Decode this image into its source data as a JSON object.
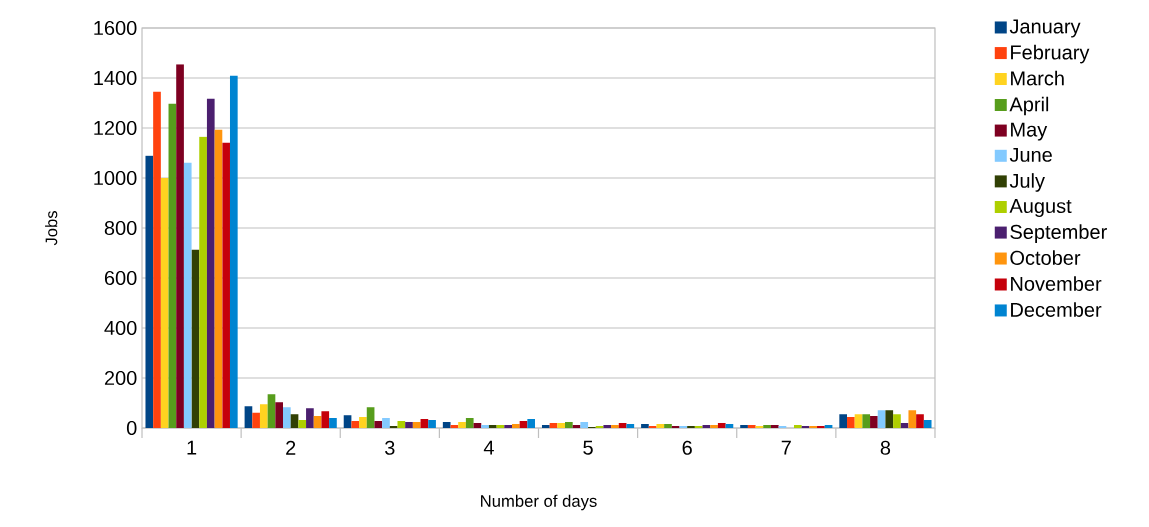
{
  "chart_data": {
    "type": "bar",
    "xlabel": "Number of days",
    "ylabel": "Jobs",
    "categories": [
      "1",
      "2",
      "3",
      "4",
      "5",
      "6",
      "7",
      "8"
    ],
    "series": [
      {
        "name": "January",
        "color": "#004586",
        "values": [
          1089,
          87,
          51,
          24,
          12,
          16,
          12,
          55
        ]
      },
      {
        "name": "February",
        "color": "#ff420e",
        "values": [
          1345,
          61,
          28,
          12,
          20,
          8,
          12,
          44
        ]
      },
      {
        "name": "March",
        "color": "#ffd320",
        "values": [
          1000,
          95,
          44,
          24,
          20,
          16,
          8,
          55
        ]
      },
      {
        "name": "April",
        "color": "#579d1c",
        "values": [
          1297,
          135,
          83,
          40,
          24,
          16,
          12,
          55
        ]
      },
      {
        "name": "May",
        "color": "#7e0021",
        "values": [
          1455,
          103,
          28,
          20,
          12,
          8,
          12,
          48
        ]
      },
      {
        "name": "June",
        "color": "#83caff",
        "values": [
          1061,
          83,
          40,
          12,
          24,
          8,
          8,
          71
        ]
      },
      {
        "name": "July",
        "color": "#314004",
        "values": [
          713,
          55,
          8,
          12,
          4,
          8,
          0,
          71
        ]
      },
      {
        "name": "August",
        "color": "#aecf00",
        "values": [
          1165,
          32,
          28,
          12,
          8,
          8,
          12,
          55
        ]
      },
      {
        "name": "September",
        "color": "#4b1f6f",
        "values": [
          1317,
          79,
          24,
          12,
          12,
          12,
          8,
          20
        ]
      },
      {
        "name": "October",
        "color": "#ff950e",
        "values": [
          1193,
          48,
          24,
          16,
          12,
          12,
          8,
          71
        ]
      },
      {
        "name": "November",
        "color": "#c5000b",
        "values": [
          1141,
          67,
          36,
          28,
          20,
          20,
          8,
          55
        ]
      },
      {
        "name": "December",
        "color": "#0084d1",
        "values": [
          1409,
          40,
          32,
          36,
          16,
          16,
          12,
          32
        ]
      }
    ],
    "ylim": [
      0,
      1600
    ],
    "yticks": [
      0,
      200,
      400,
      600,
      800,
      1000,
      1200,
      1400,
      1600
    ],
    "grid": "y",
    "legend": "right"
  }
}
